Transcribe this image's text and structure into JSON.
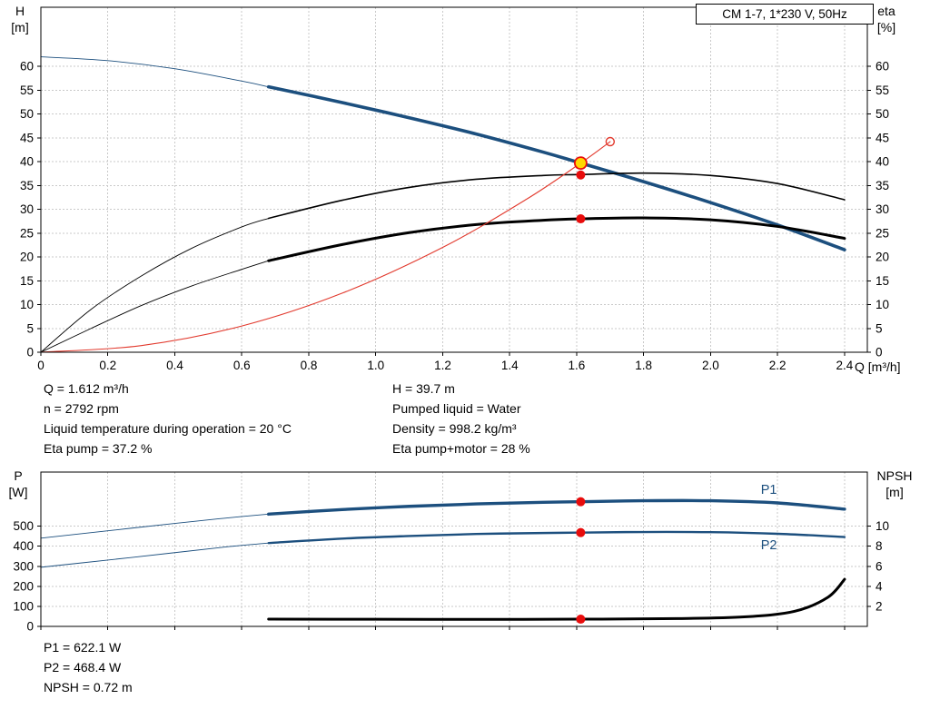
{
  "title_box": {
    "label": "CM 1-7, 1*230 V, 50Hz"
  },
  "axes_labels": {
    "top_left_1": "H",
    "top_left_2": "[m]",
    "top_right_1": "eta",
    "top_right_2": "[%]",
    "x_label": "Q [m³/h]",
    "bottom_left_1": "P",
    "bottom_left_2": "[W]",
    "bottom_right_1": "NPSH",
    "bottom_right_2": "[m]"
  },
  "info_top": {
    "left": [
      "Q = 1.612 m³/h",
      "n = 2792 rpm",
      "Liquid temperature during operation = 20 °C",
      "Eta pump = 37.2 %"
    ],
    "right": [
      "H = 39.7 m",
      "Pumped liquid = Water",
      "Density = 998.2 kg/m³",
      "Eta pump+motor = 28 %"
    ]
  },
  "info_bottom": [
    "P1 = 622.1 W",
    "P2 = 468.4 W",
    "NPSH = 0.72 m"
  ],
  "colors": {
    "blue": "#1c4f7e",
    "black": "#000000",
    "red": "#e23a2e",
    "grid": "#c9c9c9",
    "op_yellow": "#ffd800",
    "dot_red": "#e80c0c"
  },
  "chart_data": [
    {
      "type": "line",
      "title": "CM 1-7, 1*230 V, 50Hz",
      "xlabel": "Q [m³/h]",
      "ylabel_left": "H [m]",
      "ylabel_right": "eta [%]",
      "xlim": [
        0,
        2.468
      ],
      "ylim": [
        0,
        72.4
      ],
      "grid": true,
      "x_ticks": [
        0,
        0.2,
        0.4,
        0.6,
        0.8,
        1,
        1.2,
        1.4,
        1.6,
        1.8,
        2,
        2.2,
        2.4
      ],
      "x_tick_labels": [
        "0",
        "0.2",
        "0.4",
        "0.6",
        "0.8",
        "1.0",
        "1.2",
        "1.4",
        "1.6",
        "1.8",
        "2.0",
        "2.2",
        "2.4"
      ],
      "y_ticks": [
        0,
        5,
        10,
        15,
        20,
        25,
        30,
        35,
        40,
        45,
        50,
        55,
        60
      ],
      "y_tick_labels": [
        "0",
        "5",
        "10",
        "15",
        "20",
        "25",
        "30",
        "35",
        "40",
        "45",
        "50",
        "55",
        "60"
      ],
      "right_ticks": [
        0,
        5,
        10,
        15,
        20,
        25,
        30,
        35,
        40,
        45,
        50,
        55,
        60
      ],
      "right_tick_labels": [
        "0",
        "5",
        "10",
        "15",
        "20",
        "25",
        "30",
        "35",
        "40",
        "45",
        "50",
        "55",
        "60"
      ],
      "right_scale": 1,
      "series": [
        {
          "name": "pump-curve-extension",
          "color": "blue",
          "width": 0.9,
          "points": [
            [
              0,
              62
            ],
            [
              0.2,
              61.2
            ],
            [
              0.4,
              59.5
            ],
            [
              0.6,
              56.9
            ],
            [
              0.68,
              55.7
            ]
          ]
        },
        {
          "name": "pump-curve",
          "color": "blue",
          "width": 3.6,
          "points": [
            [
              0.68,
              55.7
            ],
            [
              0.9,
              52.4
            ],
            [
              1.1,
              49.2
            ],
            [
              1.3,
              45.8
            ],
            [
              1.5,
              42.0
            ],
            [
              1.612,
              39.7
            ],
            [
              1.8,
              35.8
            ],
            [
              2.0,
              31.4
            ],
            [
              2.2,
              26.7
            ],
            [
              2.4,
              21.5
            ]
          ]
        },
        {
          "name": "eta-pump-extension",
          "color": "black",
          "width": 0.9,
          "points": [
            [
              0,
              0
            ],
            [
              0.15,
              9
            ],
            [
              0.3,
              16
            ],
            [
              0.45,
              21.8
            ],
            [
              0.6,
              26.3
            ],
            [
              0.68,
              28.1
            ]
          ]
        },
        {
          "name": "eta-pump-curve",
          "color": "black",
          "width": 1.6,
          "points": [
            [
              0.68,
              28.1
            ],
            [
              0.9,
              31.9
            ],
            [
              1.1,
              34.6
            ],
            [
              1.3,
              36.3
            ],
            [
              1.5,
              37.1
            ],
            [
              1.612,
              37.3
            ],
            [
              1.8,
              37.6
            ],
            [
              2.0,
              37.1
            ],
            [
              2.2,
              35.4
            ],
            [
              2.4,
              32.0
            ]
          ]
        },
        {
          "name": "eta-pump-motor-extension",
          "color": "black",
          "width": 0.9,
          "points": [
            [
              0,
              0
            ],
            [
              0.15,
              5
            ],
            [
              0.3,
              9.8
            ],
            [
              0.45,
              13.9
            ],
            [
              0.6,
              17.4
            ],
            [
              0.68,
              19.2
            ]
          ]
        },
        {
          "name": "eta-pump-motor-curve",
          "color": "black",
          "width": 3,
          "points": [
            [
              0.68,
              19.2
            ],
            [
              0.9,
              22.6
            ],
            [
              1.1,
              25.1
            ],
            [
              1.3,
              26.8
            ],
            [
              1.5,
              27.7
            ],
            [
              1.612,
              28.0
            ],
            [
              1.8,
              28.2
            ],
            [
              2.0,
              27.8
            ],
            [
              2.2,
              26.4
            ],
            [
              2.4,
              23.9
            ]
          ]
        },
        {
          "name": "system-curve",
          "color": "red",
          "width": 1.1,
          "points": [
            [
              0,
              0
            ],
            [
              0.3,
              1.4
            ],
            [
              0.6,
              5.5
            ],
            [
              0.9,
              12.4
            ],
            [
              1.2,
              22.0
            ],
            [
              1.45,
              32.1
            ],
            [
              1.612,
              39.7
            ],
            [
              1.7,
              44.2
            ]
          ]
        }
      ],
      "markers": [
        {
          "name": "system-curve-end-circle",
          "q": 1.7,
          "v": 44.2,
          "kind": "open-circle"
        },
        {
          "name": "eta-pump-point",
          "q": 1.612,
          "v": 37.2,
          "kind": "dot"
        },
        {
          "name": "eta-pump-motor-point",
          "q": 1.612,
          "v": 28,
          "kind": "dot"
        },
        {
          "name": "duty-point",
          "q": 1.612,
          "v": 39.7,
          "kind": "op"
        }
      ]
    },
    {
      "type": "line",
      "title": "",
      "xlabel": "",
      "ylabel_left": "P [W]",
      "ylabel_right": "NPSH [m]",
      "xlim": [
        0,
        2.468
      ],
      "ylim": [
        0,
        770
      ],
      "right_lim": [
        0,
        15.4
      ],
      "grid": true,
      "x_ticks": [
        0,
        0.2,
        0.4,
        0.6,
        0.8,
        1,
        1.2,
        1.4,
        1.6,
        1.8,
        2,
        2.2,
        2.4
      ],
      "x_tick_labels": [],
      "y_ticks": [
        0,
        100,
        200,
        300,
        400,
        500
      ],
      "y_tick_labels": [
        "0",
        "100",
        "200",
        "300",
        "400",
        "500"
      ],
      "right_ticks": [
        2,
        4,
        6,
        8,
        10
      ],
      "right_tick_labels": [
        "2",
        "4",
        "6",
        "8",
        "10"
      ],
      "right_scale": 50,
      "series": [
        {
          "name": "p1-curve-extension",
          "color": "blue",
          "width": 0.9,
          "points": [
            [
              0,
              440
            ],
            [
              0.2,
              477
            ],
            [
              0.4,
              514
            ],
            [
              0.55,
              540
            ],
            [
              0.68,
              560
            ]
          ]
        },
        {
          "name": "p1-curve",
          "color": "blue",
          "width": 3.4,
          "points": [
            [
              0.68,
              560
            ],
            [
              0.9,
              583
            ],
            [
              1.1,
              599
            ],
            [
              1.3,
              611
            ],
            [
              1.5,
              619
            ],
            [
              1.612,
              622
            ],
            [
              1.8,
              627
            ],
            [
              2.0,
              627
            ],
            [
              2.2,
              616
            ],
            [
              2.4,
              585
            ]
          ]
        },
        {
          "name": "p2-curve-extension",
          "color": "blue",
          "width": 0.9,
          "points": [
            [
              0,
              295
            ],
            [
              0.2,
              331
            ],
            [
              0.4,
              368
            ],
            [
              0.55,
              396
            ],
            [
              0.68,
              416
            ]
          ]
        },
        {
          "name": "p2-curve",
          "color": "blue",
          "width": 2.4,
          "points": [
            [
              0.68,
              416
            ],
            [
              0.9,
              438
            ],
            [
              1.1,
              451
            ],
            [
              1.3,
              461
            ],
            [
              1.5,
              466
            ],
            [
              1.612,
              468
            ],
            [
              1.8,
              471
            ],
            [
              2.0,
              470
            ],
            [
              2.2,
              462
            ],
            [
              2.4,
              446
            ]
          ]
        },
        {
          "name": "npsh-curve",
          "color": "black",
          "width": 3,
          "axis": "right",
          "points": [
            [
              0.68,
              0.72
            ],
            [
              1.0,
              0.71
            ],
            [
              1.3,
              0.7
            ],
            [
              1.612,
              0.72
            ],
            [
              1.9,
              0.78
            ],
            [
              2.1,
              0.95
            ],
            [
              2.25,
              1.5
            ],
            [
              2.35,
              2.9
            ],
            [
              2.4,
              4.7
            ]
          ]
        }
      ],
      "markers": [
        {
          "name": "p1-point",
          "q": 1.612,
          "v": 622,
          "kind": "dot"
        },
        {
          "name": "p2-point",
          "q": 1.612,
          "v": 468,
          "kind": "dot"
        },
        {
          "name": "npsh-point",
          "q": 1.612,
          "v": 0.72,
          "axis": "right",
          "kind": "dot"
        }
      ],
      "annotations": [
        {
          "text": "P1",
          "q": 2.15,
          "v": 662,
          "color": "blue"
        },
        {
          "text": "P2",
          "q": 2.15,
          "v": 385,
          "color": "blue"
        }
      ]
    }
  ]
}
